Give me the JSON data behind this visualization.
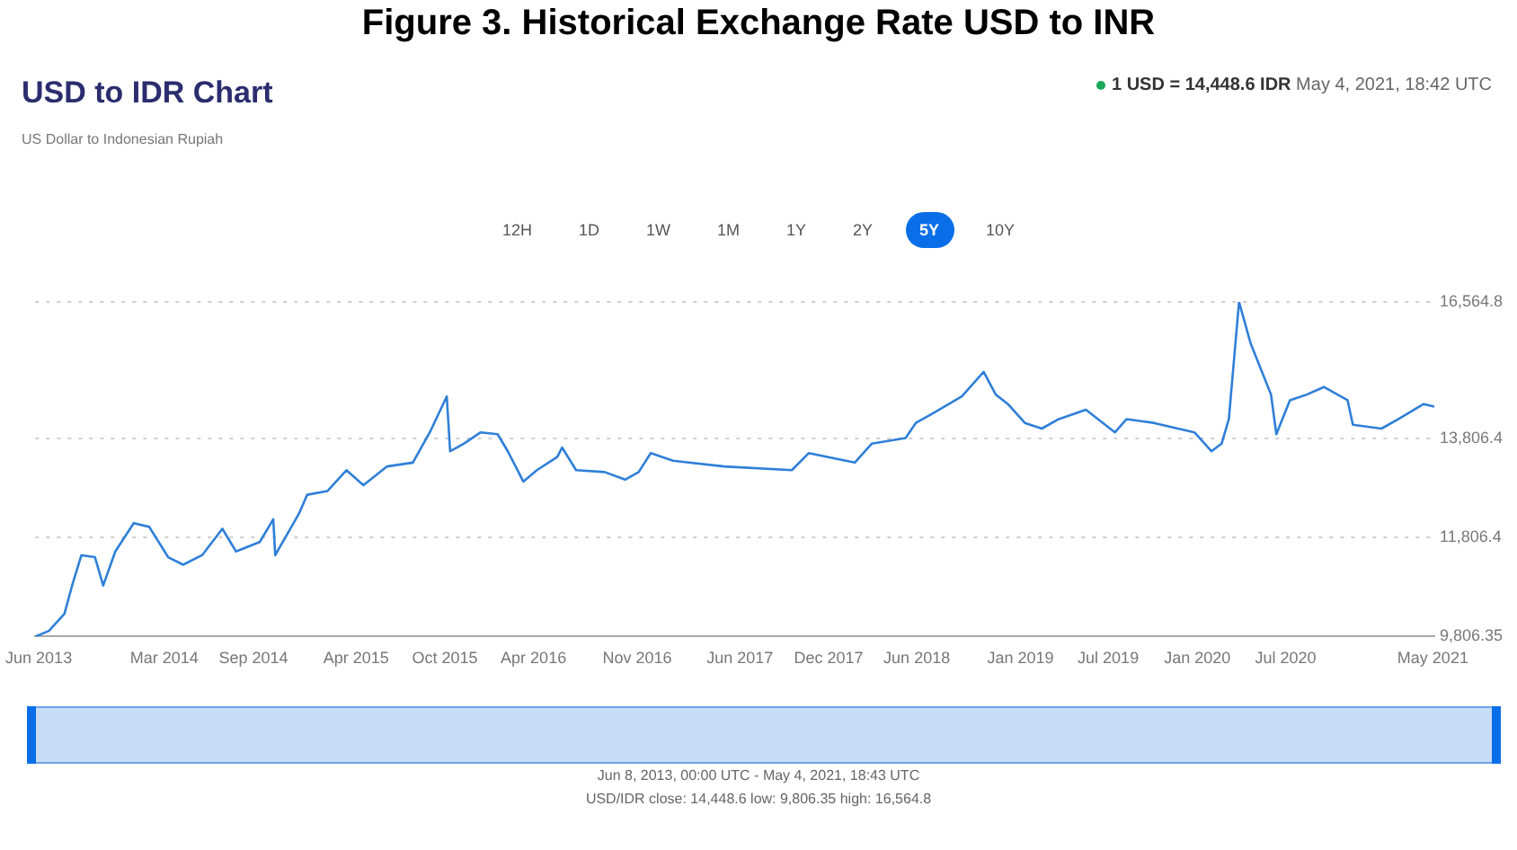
{
  "chart_data": {
    "type": "line",
    "title": "Figure 3. Historical Exchange Rate USD to INR",
    "subtitle": "USD to IDR Chart",
    "annotations": [
      "US Dollar to Indonesian Rupiah",
      "1 USD = 14,448.6 IDR",
      "May 4, 2021, 18:42 UTC",
      "12H",
      "1D",
      "1W",
      "1M",
      "1Y",
      "2Y",
      "5Y",
      "10Y",
      "Jun 8, 2013, 00:00 UTC - May 4, 2021, 18:43 UTC",
      "USD/IDR close: 14,448.6 low: 9,806.35 high: 16,564.8"
    ],
    "x": [
      "2013-06-08",
      "2013-07-06",
      "2013-08-07",
      "2013-08-24",
      "2013-09-11",
      "2013-10-09",
      "2013-10-26",
      "2013-11-20",
      "2013-12-28",
      "2014-01-29",
      "2014-03-09",
      "2014-04-09",
      "2014-05-18",
      "2014-06-29",
      "2014-07-27",
      "2014-09-14",
      "2014-10-12",
      "2014-10-16",
      "2014-12-04",
      "2014-12-21",
      "2015-02-01",
      "2015-03-12",
      "2015-04-16",
      "2015-06-04",
      "2015-07-27",
      "2015-08-31",
      "2015-10-05",
      "2015-10-12",
      "2015-11-09",
      "2015-12-14",
      "2016-01-18",
      "2016-02-08",
      "2016-03-11",
      "2016-04-08",
      "2016-05-20",
      "2016-05-30",
      "2016-06-28",
      "2016-08-26",
      "2016-10-07",
      "2016-11-04",
      "2016-11-29",
      "2017-01-14",
      "2017-04-29",
      "2017-09-16",
      "2017-10-21",
      "2018-01-24",
      "2018-02-28",
      "2018-05-09",
      "2018-05-30",
      "2018-07-04",
      "2018-09-02",
      "2018-10-17",
      "2018-11-11",
      "2018-12-06",
      "2019-01-10",
      "2019-02-14",
      "2019-03-21",
      "2019-05-16",
      "2019-07-15",
      "2019-08-08",
      "2019-10-03",
      "2019-12-26",
      "2020-01-30",
      "2020-02-20",
      "2020-03-06",
      "2020-03-27",
      "2020-04-20",
      "2020-06-01",
      "2020-06-12",
      "2020-07-10",
      "2020-08-14",
      "2020-09-18",
      "2020-11-06",
      "2020-11-17",
      "2021-01-15",
      "2021-02-19",
      "2021-04-12",
      "2021-05-04"
    ],
    "series": [
      {
        "color": "#2f7fd8",
        "values": [
          9806.35,
          9921,
          10265,
          10875,
          11448,
          11410,
          10837,
          11525,
          12097,
          12021,
          11410,
          11257,
          11448,
          11983,
          11525,
          11715,
          12174,
          11448,
          12288,
          12670,
          12746,
          13166,
          12861,
          13242,
          13319,
          13930,
          14655,
          13548,
          13701,
          13930,
          13892,
          13548,
          12937,
          13166,
          13433,
          13624,
          13166,
          13128,
          12975,
          13128,
          13510,
          13357,
          13242,
          13166,
          13510,
          13319,
          13701,
          13815,
          14121,
          14312,
          14655,
          15152,
          14693,
          14502,
          14121,
          14006,
          14197,
          14388,
          13930,
          14197,
          14121,
          13930,
          13548,
          13701,
          14197,
          16564.8,
          15724,
          14693,
          13892,
          14579,
          14693,
          14846,
          14579,
          14082,
          14006,
          14197,
          14502,
          14448.6
        ]
      }
    ],
    "xlim": [
      "2013-06-08",
      "2021-05-04"
    ],
    "xticks": [
      {
        "value": "2013-06-15",
        "label": "Jun 2013"
      },
      {
        "value": "2014-03-01",
        "label": "Mar 2014"
      },
      {
        "value": "2014-09-01",
        "label": "Sep 2014"
      },
      {
        "value": "2015-04-01",
        "label": "Apr 2015"
      },
      {
        "value": "2015-10-01",
        "label": "Oct 2015"
      },
      {
        "value": "2016-04-01",
        "label": "Apr 2016"
      },
      {
        "value": "2016-11-01",
        "label": "Nov 2016"
      },
      {
        "value": "2017-06-01",
        "label": "Jun 2017"
      },
      {
        "value": "2017-12-01",
        "label": "Dec 2017"
      },
      {
        "value": "2018-06-01",
        "label": "Jun 2018"
      },
      {
        "value": "2019-01-01",
        "label": "Jan 2019"
      },
      {
        "value": "2019-07-01",
        "label": "Jul 2019"
      },
      {
        "value": "2020-01-01",
        "label": "Jan 2020"
      },
      {
        "value": "2020-07-01",
        "label": "Jul 2020"
      },
      {
        "value": "2021-05-01",
        "label": "May 2021"
      }
    ],
    "ylim": [
      9806.35,
      16564.8
    ],
    "yticks": [
      {
        "value": 9806.35,
        "label": "9,806.35"
      },
      {
        "value": 11806.4,
        "label": "11,806.4"
      },
      {
        "value": 13806.4,
        "label": "13,806.4"
      },
      {
        "value": 16564.8,
        "label": "16,564.8"
      }
    ],
    "grid": "y",
    "legend": false,
    "marker": "none",
    "line_style": "solid"
  }
}
